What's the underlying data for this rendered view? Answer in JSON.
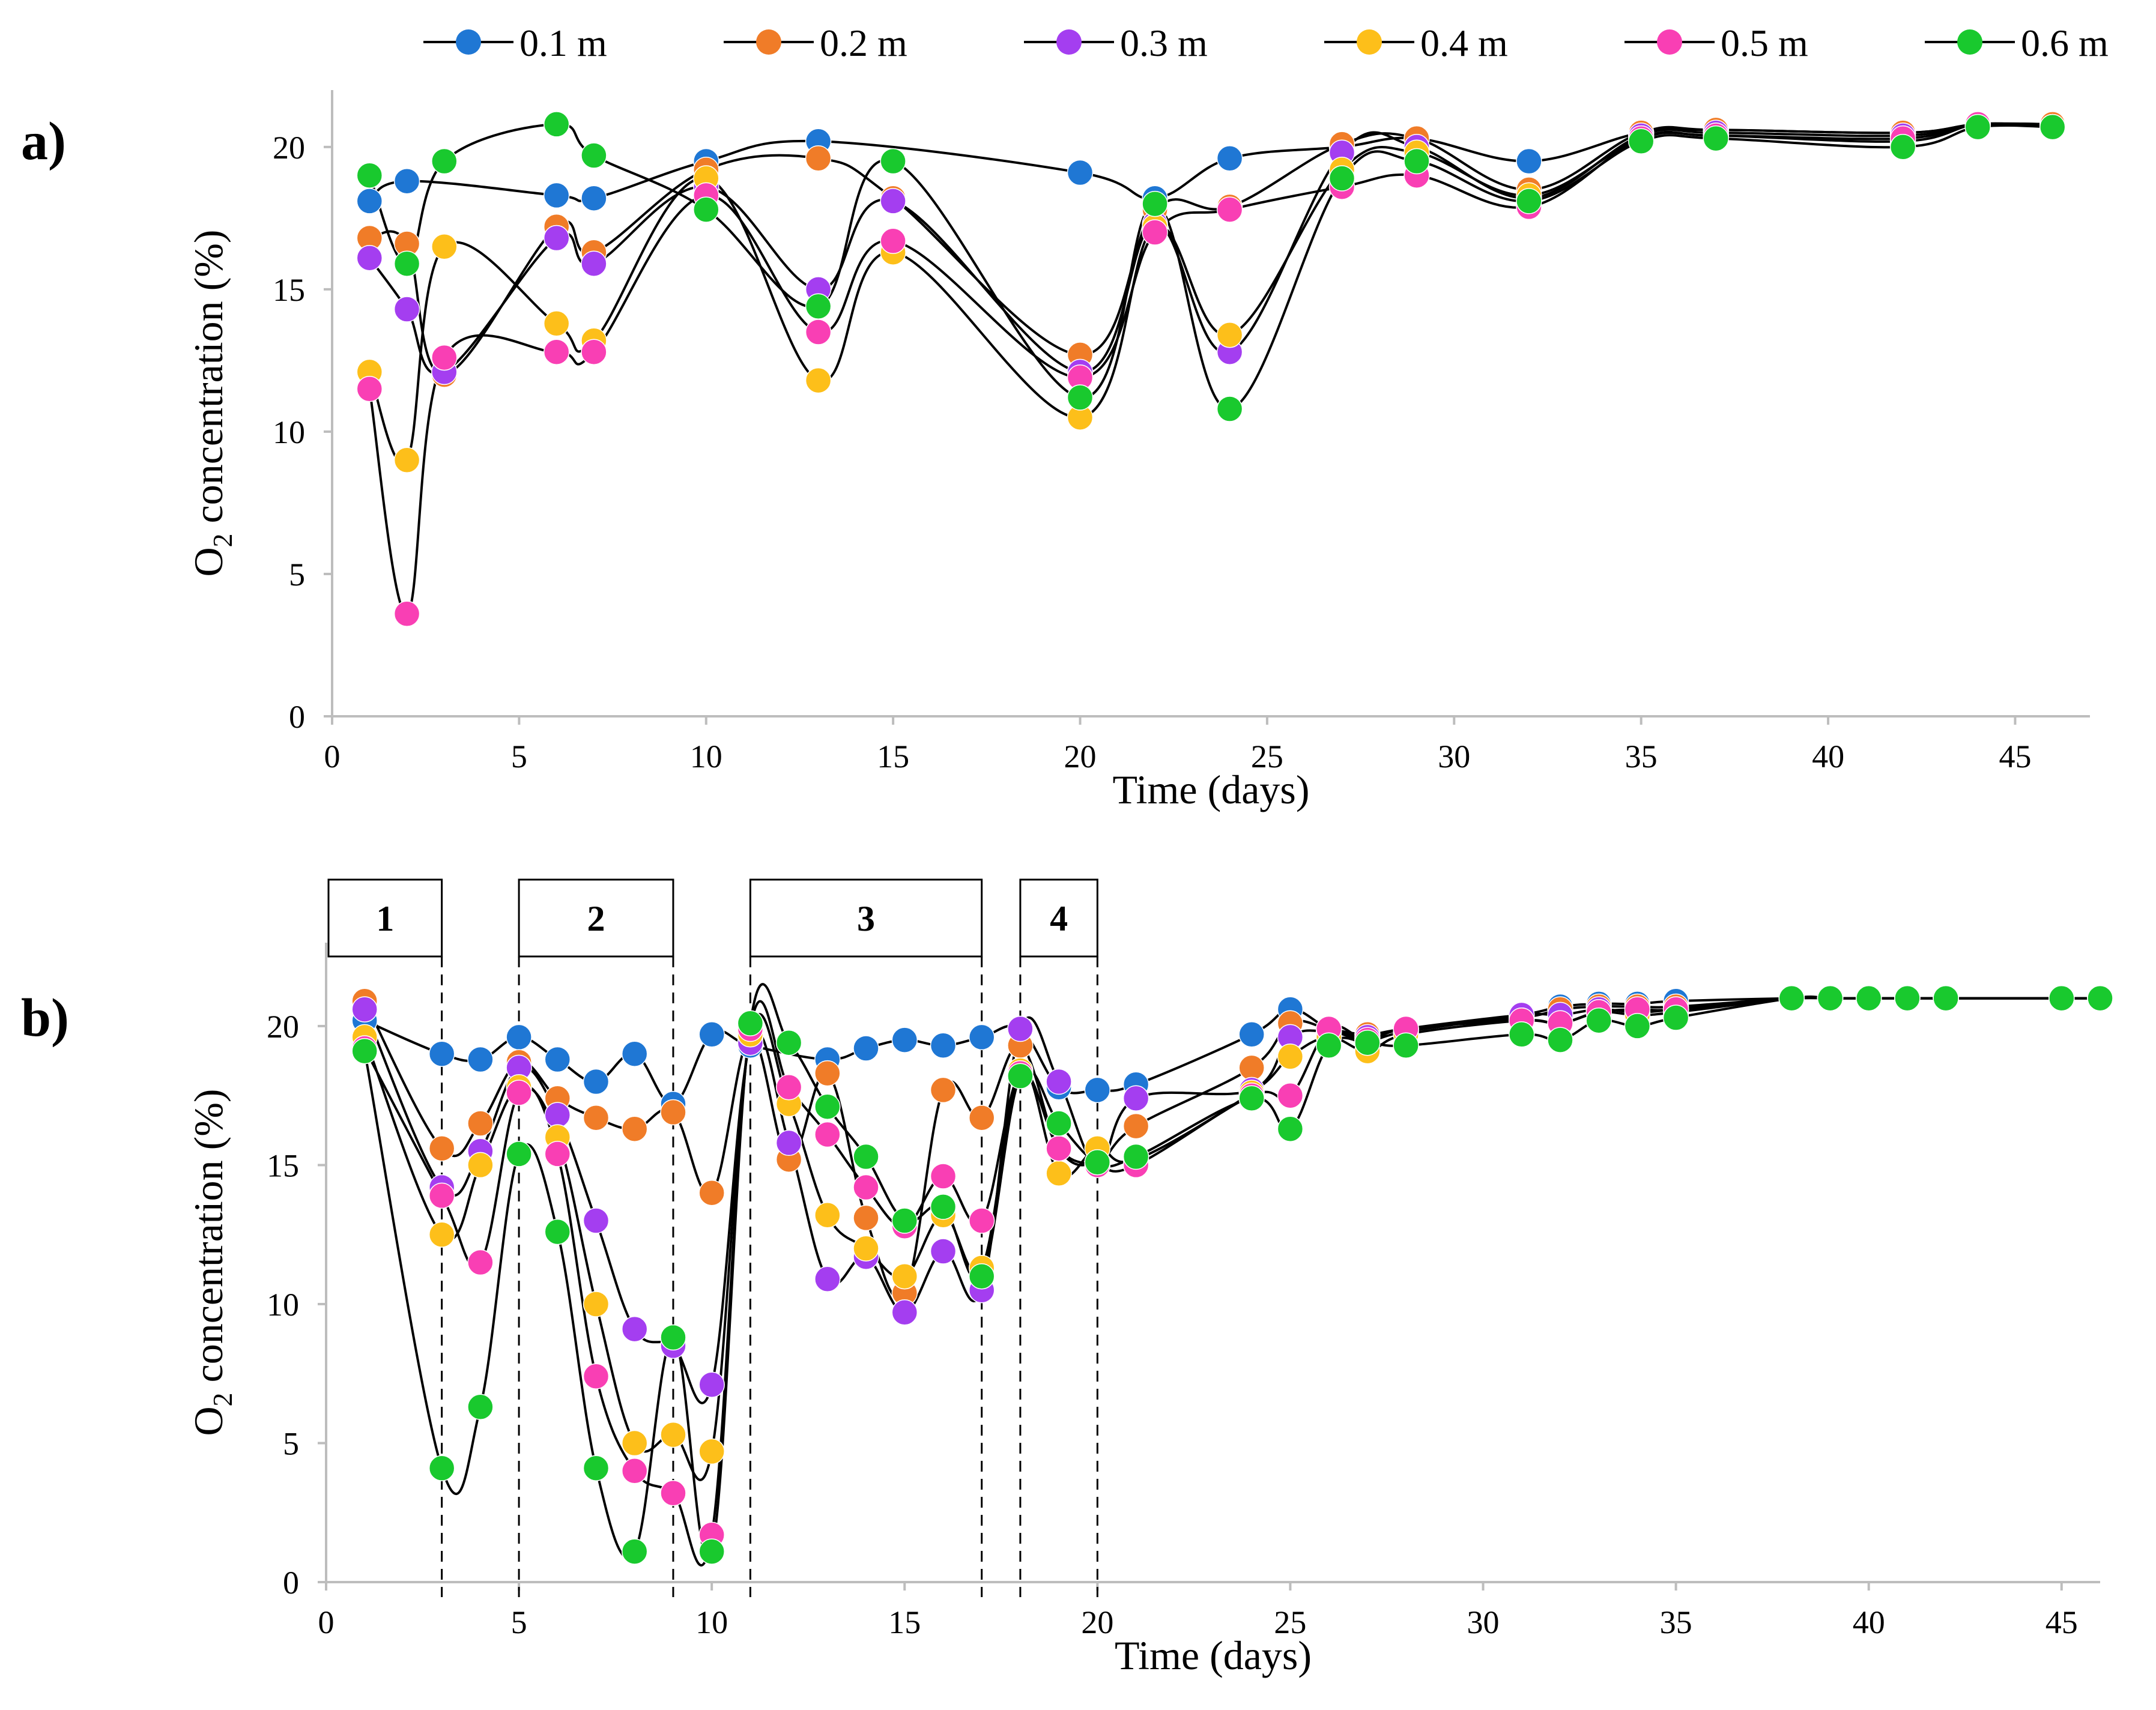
{
  "legend": {
    "items": [
      {
        "label": "0.1 m",
        "color": "#1f77d4"
      },
      {
        "label": "0.2 m",
        "color": "#f07c28"
      },
      {
        "label": "0.3 m",
        "color": "#a43ef0"
      },
      {
        "label": "0.4 m",
        "color": "#fdbf1a"
      },
      {
        "label": "0.5 m",
        "color": "#f93fb4"
      },
      {
        "label": "0.6 m",
        "color": "#19c92e"
      }
    ]
  },
  "chart_data": [
    {
      "type": "line",
      "panel_label": "a)",
      "xlabel": "Time (days)",
      "ylabel_main": "O",
      "ylabel_sub": "2",
      "ylabel_rest": " concentration (%)",
      "xlim": [
        0,
        47
      ],
      "ylim": [
        0,
        22
      ],
      "xticks": [
        0,
        5,
        10,
        15,
        20,
        25,
        30,
        35,
        40,
        45
      ],
      "yticks": [
        0,
        5,
        10,
        15,
        20
      ],
      "series": [
        {
          "name": "0.1 m",
          "x": [
            1,
            2,
            6,
            7,
            10,
            13,
            20,
            22,
            24,
            27,
            29,
            32,
            35,
            37,
            42,
            44,
            46
          ],
          "y": [
            18.1,
            18.8,
            18.3,
            18.2,
            19.5,
            20.2,
            19.1,
            18.2,
            19.6,
            20.0,
            20.3,
            19.5,
            20.5,
            20.6,
            20.5,
            20.8,
            20.8
          ]
        },
        {
          "name": "0.2 m",
          "x": [
            1,
            2,
            3,
            6,
            7,
            10,
            13,
            15,
            20,
            22,
            24,
            27,
            29,
            32,
            35,
            37,
            42,
            44,
            46
          ],
          "y": [
            16.8,
            16.6,
            12.0,
            17.2,
            16.3,
            19.2,
            19.6,
            18.2,
            12.7,
            17.8,
            17.9,
            20.1,
            20.3,
            18.5,
            20.5,
            20.6,
            20.5,
            20.8,
            20.8
          ]
        },
        {
          "name": "0.3 m",
          "x": [
            1,
            2,
            3,
            6,
            7,
            10,
            13,
            15,
            20,
            22,
            24,
            27,
            29,
            32,
            35,
            37,
            42,
            44,
            46
          ],
          "y": [
            16.1,
            14.3,
            12.1,
            16.8,
            15.9,
            18.6,
            15.0,
            18.1,
            12.1,
            17.3,
            12.8,
            19.8,
            20.0,
            18.2,
            20.4,
            20.5,
            20.4,
            20.8,
            20.7
          ]
        },
        {
          "name": "0.4 m",
          "x": [
            1,
            2,
            3,
            6,
            7,
            10,
            13,
            15,
            20,
            22,
            24,
            27,
            29,
            32,
            35,
            37,
            42,
            44,
            46
          ],
          "y": [
            12.1,
            9.0,
            16.5,
            13.8,
            13.2,
            18.9,
            11.8,
            16.3,
            10.5,
            17.2,
            13.4,
            19.2,
            19.8,
            18.3,
            20.3,
            20.4,
            20.2,
            20.8,
            20.7
          ]
        },
        {
          "name": "0.5 m",
          "x": [
            1,
            2,
            3,
            6,
            7,
            10,
            13,
            15,
            20,
            22,
            24,
            27,
            29,
            32,
            35,
            37,
            42,
            44,
            46
          ],
          "y": [
            11.5,
            3.6,
            12.6,
            12.8,
            12.8,
            18.3,
            13.5,
            16.7,
            11.9,
            17.0,
            17.8,
            18.6,
            19.0,
            17.9,
            20.3,
            20.4,
            20.3,
            20.8,
            20.7
          ]
        },
        {
          "name": "0.6 m",
          "x": [
            1,
            2,
            3,
            6,
            7,
            10,
            13,
            15,
            20,
            22,
            24,
            27,
            29,
            32,
            35,
            37,
            42,
            44,
            46
          ],
          "y": [
            19.0,
            15.9,
            19.5,
            20.8,
            19.7,
            17.8,
            14.4,
            19.5,
            11.2,
            18.0,
            10.8,
            18.9,
            19.5,
            18.1,
            20.2,
            20.3,
            20.0,
            20.7,
            20.7
          ]
        }
      ]
    },
    {
      "type": "line",
      "panel_label": "b)",
      "xlabel": "Time (days)",
      "ylabel_main": "O",
      "ylabel_sub": "2",
      "ylabel_rest": " concentration (%)",
      "xlim": [
        0,
        46
      ],
      "ylim": [
        0,
        23
      ],
      "xticks": [
        0,
        5,
        10,
        15,
        20,
        25,
        30,
        35,
        40,
        45
      ],
      "yticks": [
        0,
        5,
        10,
        15,
        20
      ],
      "phases": [
        {
          "label": "1",
          "start": 0,
          "end": 3
        },
        {
          "label": "2",
          "start": 5,
          "end": 9
        },
        {
          "label": "3",
          "start": 11,
          "end": 17
        },
        {
          "label": "4",
          "start": 18,
          "end": 20
        }
      ],
      "series": [
        {
          "name": "0.1 m",
          "x": [
            1,
            3,
            4,
            5,
            6,
            7,
            8,
            9,
            10,
            11,
            13,
            14,
            15,
            16,
            17,
            18,
            19,
            20,
            21,
            24,
            25,
            26,
            27,
            28,
            31,
            32,
            33,
            34,
            35,
            38,
            39,
            40,
            41,
            42,
            45,
            46
          ],
          "y": [
            20.2,
            19.0,
            18.8,
            19.6,
            18.8,
            18.0,
            19.0,
            17.2,
            19.7,
            19.3,
            18.8,
            19.2,
            19.5,
            19.3,
            19.6,
            19.9,
            17.8,
            17.7,
            17.9,
            19.7,
            20.6,
            19.9,
            19.5,
            19.8,
            20.4,
            20.7,
            20.8,
            20.8,
            20.9,
            21.0,
            21.0,
            21.0,
            21.0,
            21.0,
            21.0,
            21.0
          ]
        },
        {
          "name": "0.2 m",
          "x": [
            1,
            3,
            4,
            5,
            6,
            7,
            8,
            9,
            10,
            11,
            12,
            13,
            14,
            15,
            16,
            17,
            18,
            19,
            20,
            21,
            24,
            25,
            26,
            27,
            28,
            31,
            32,
            33,
            34,
            35,
            38,
            39,
            40,
            41,
            42,
            45,
            46
          ],
          "y": [
            20.9,
            15.6,
            16.5,
            18.7,
            17.4,
            16.7,
            16.3,
            16.9,
            14.0,
            19.6,
            15.2,
            18.3,
            13.1,
            10.4,
            17.7,
            16.7,
            19.3,
            15.6,
            15.1,
            16.4,
            18.5,
            20.1,
            19.9,
            19.7,
            19.9,
            20.3,
            20.6,
            20.7,
            20.7,
            20.7,
            21.0,
            21.0,
            21.0,
            21.0,
            21.0,
            21.0,
            21.0
          ]
        },
        {
          "name": "0.3 m",
          "x": [
            1,
            3,
            4,
            5,
            6,
            7,
            8,
            9,
            10,
            11,
            12,
            13,
            14,
            15,
            16,
            17,
            18,
            19,
            20,
            21,
            24,
            25,
            26,
            27,
            28,
            31,
            32,
            33,
            34,
            35,
            38,
            39,
            40,
            41,
            42,
            45,
            46
          ],
          "y": [
            20.6,
            14.2,
            15.5,
            18.5,
            16.8,
            13.0,
            9.1,
            8.5,
            7.1,
            19.4,
            15.8,
            10.9,
            11.7,
            9.7,
            11.9,
            10.5,
            19.9,
            18.0,
            15.0,
            17.4,
            17.7,
            19.6,
            19.8,
            19.6,
            19.9,
            20.4,
            20.4,
            20.6,
            20.5,
            20.6,
            21.0,
            21.0,
            21.0,
            21.0,
            21.0,
            21.0,
            21.0
          ]
        },
        {
          "name": "0.4 m",
          "x": [
            1,
            3,
            4,
            5,
            6,
            7,
            8,
            9,
            10,
            11,
            12,
            13,
            14,
            15,
            16,
            17,
            18,
            19,
            20,
            21,
            24,
            25,
            26,
            27,
            28,
            31,
            32,
            33,
            34,
            35,
            38,
            39,
            40,
            41,
            42,
            45,
            46
          ],
          "y": [
            19.6,
            12.5,
            15.0,
            17.8,
            16.0,
            10.0,
            5.0,
            5.3,
            4.7,
            19.7,
            17.2,
            13.2,
            12.0,
            11.0,
            13.2,
            11.3,
            18.4,
            14.7,
            15.6,
            15.2,
            17.6,
            18.9,
            19.6,
            19.1,
            19.7,
            20.2,
            20.1,
            20.5,
            20.4,
            20.5,
            21.0,
            21.0,
            21.0,
            21.0,
            21.0,
            21.0,
            21.0
          ]
        },
        {
          "name": "0.5 m",
          "x": [
            1,
            3,
            4,
            5,
            6,
            7,
            8,
            9,
            10,
            11,
            12,
            13,
            14,
            15,
            16,
            17,
            18,
            19,
            20,
            21,
            24,
            25,
            26,
            27,
            28,
            31,
            32,
            33,
            34,
            35,
            38,
            39,
            40,
            41,
            42,
            45,
            46
          ],
          "y": [
            19.2,
            13.9,
            11.5,
            17.6,
            15.4,
            7.4,
            4.0,
            3.2,
            1.7,
            19.9,
            17.8,
            16.1,
            14.2,
            12.8,
            14.6,
            13.0,
            18.3,
            15.6,
            15.0,
            15.0,
            17.5,
            17.5,
            19.9,
            19.5,
            19.9,
            20.2,
            20.1,
            20.5,
            20.6,
            20.6,
            21.0,
            21.0,
            21.0,
            21.0,
            21.0,
            21.0,
            21.0
          ]
        },
        {
          "name": "0.6 m",
          "x": [
            1,
            3,
            4,
            5,
            6,
            7,
            8,
            9,
            10,
            11,
            12,
            13,
            14,
            15,
            16,
            17,
            18,
            19,
            20,
            21,
            24,
            25,
            26,
            27,
            28,
            31,
            32,
            33,
            34,
            35,
            38,
            39,
            40,
            41,
            42,
            45,
            46
          ],
          "y": [
            19.1,
            4.1,
            6.3,
            15.4,
            12.6,
            4.1,
            1.1,
            8.8,
            1.1,
            20.1,
            19.4,
            17.1,
            15.3,
            13.0,
            13.5,
            11.0,
            18.2,
            16.5,
            15.1,
            15.3,
            17.4,
            16.3,
            19.3,
            19.4,
            19.3,
            19.7,
            19.5,
            20.2,
            20.0,
            20.3,
            21.0,
            21.0,
            21.0,
            21.0,
            21.0,
            21.0,
            21.0
          ]
        }
      ]
    }
  ]
}
